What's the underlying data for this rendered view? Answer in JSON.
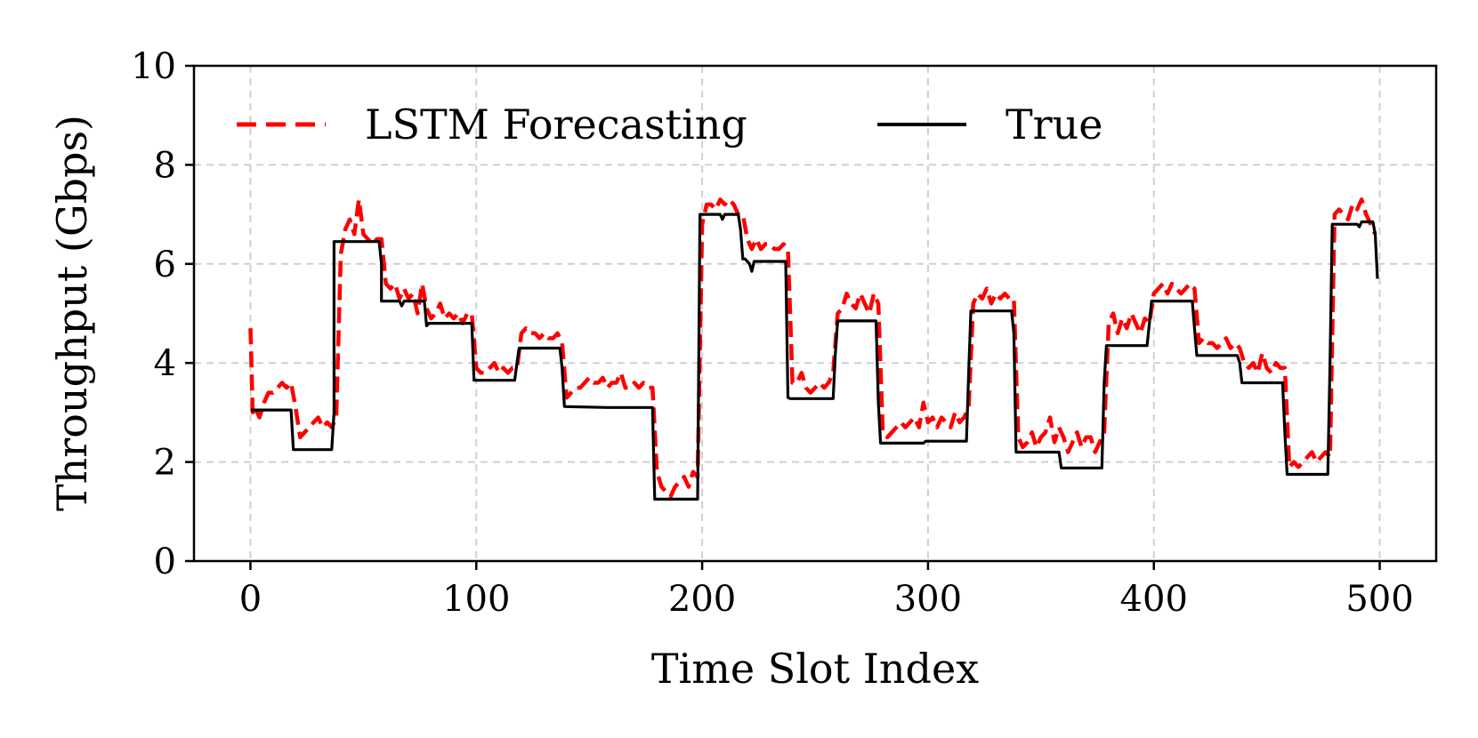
{
  "chart_data": {
    "type": "line",
    "xlabel": "Time Slot Index",
    "ylabel": "Throughput (Gbps)",
    "xlim": [
      -25,
      525
    ],
    "ylim": [
      0,
      10
    ],
    "xticks": [
      0,
      100,
      200,
      300,
      400,
      500
    ],
    "yticks": [
      0,
      2,
      4,
      6,
      8,
      10
    ],
    "xtick_labels": [
      "0",
      "100",
      "200",
      "300",
      "400",
      "500"
    ],
    "ytick_labels": [
      "0",
      "2",
      "4",
      "6",
      "8",
      "10"
    ],
    "grid": true,
    "legend_position": "top",
    "colors": {
      "forecast": "#ff0000",
      "true": "#000000"
    },
    "series": [
      {
        "name": "LSTM Forecasting",
        "style": "dashed",
        "color": "#ff0000",
        "x": [
          0,
          1,
          2,
          4,
          6,
          8,
          10,
          12,
          14,
          16,
          18,
          20,
          22,
          24,
          26,
          28,
          30,
          32,
          34,
          36,
          38,
          40,
          42,
          44,
          46,
          48,
          50,
          52,
          54,
          56,
          58,
          60,
          62,
          64,
          66,
          68,
          70,
          72,
          74,
          76,
          78,
          80,
          82,
          84,
          86,
          88,
          90,
          92,
          94,
          96,
          98,
          100,
          102,
          104,
          106,
          108,
          110,
          112,
          114,
          116,
          118,
          120,
          122,
          124,
          126,
          128,
          130,
          132,
          134,
          136,
          138,
          140,
          142,
          144,
          146,
          148,
          150,
          152,
          154,
          156,
          158,
          160,
          162,
          164,
          166,
          168,
          170,
          172,
          174,
          176,
          178,
          180,
          182,
          184,
          186,
          188,
          190,
          192,
          194,
          196,
          198,
          200,
          202,
          204,
          206,
          208,
          210,
          212,
          214,
          216,
          218,
          220,
          222,
          224,
          226,
          228,
          230,
          232,
          234,
          236,
          238,
          240,
          242,
          244,
          246,
          248,
          250,
          252,
          254,
          256,
          258,
          260,
          262,
          264,
          266,
          268,
          270,
          272,
          274,
          276,
          278,
          280,
          282,
          284,
          286,
          288,
          290,
          292,
          294,
          296,
          298,
          300,
          302,
          304,
          306,
          308,
          310,
          312,
          314,
          316,
          318,
          320,
          322,
          324,
          326,
          328,
          330,
          332,
          334,
          336,
          338,
          340,
          342,
          344,
          346,
          348,
          350,
          352,
          354,
          356,
          358,
          360,
          362,
          364,
          366,
          368,
          370,
          372,
          374,
          376,
          378,
          380,
          382,
          384,
          386,
          388,
          390,
          392,
          394,
          396,
          398,
          400,
          402,
          404,
          406,
          408,
          410,
          412,
          414,
          416,
          418,
          420,
          422,
          424,
          426,
          428,
          430,
          432,
          434,
          436,
          438,
          440,
          442,
          444,
          446,
          448,
          450,
          452,
          454,
          456,
          458,
          460,
          462,
          464,
          466,
          468,
          470,
          472,
          474,
          476,
          478,
          480,
          482,
          484,
          486,
          488,
          490,
          492,
          494,
          496,
          498
        ],
        "y": [
          4.7,
          3.0,
          3.1,
          2.9,
          3.2,
          3.4,
          3.4,
          3.5,
          3.6,
          3.5,
          3.6,
          3.1,
          2.5,
          2.6,
          2.7,
          2.8,
          2.9,
          2.7,
          2.8,
          2.7,
          2.9,
          6.2,
          6.7,
          6.9,
          6.6,
          7.3,
          6.6,
          6.5,
          6.4,
          6.5,
          6.5,
          5.6,
          5.5,
          5.6,
          5.3,
          5.5,
          5.3,
          5.4,
          5.0,
          5.6,
          5.1,
          4.9,
          5.0,
          5.2,
          4.9,
          5.0,
          4.9,
          5.0,
          4.8,
          5.0,
          5.0,
          3.9,
          3.8,
          3.8,
          3.9,
          4.0,
          3.8,
          3.9,
          3.8,
          3.9,
          3.9,
          4.6,
          4.7,
          4.6,
          4.6,
          4.5,
          4.6,
          4.5,
          4.5,
          4.6,
          4.4,
          3.3,
          3.4,
          3.5,
          3.5,
          3.6,
          3.7,
          3.6,
          3.6,
          3.7,
          3.5,
          3.6,
          3.6,
          3.8,
          3.5,
          3.5,
          3.6,
          3.5,
          3.6,
          3.5,
          3.5,
          1.8,
          1.5,
          1.4,
          1.3,
          1.5,
          1.6,
          1.7,
          1.5,
          1.8,
          1.7,
          6.8,
          7.2,
          7.2,
          7.1,
          7.3,
          7.2,
          7.3,
          7.2,
          7.0,
          7.0,
          6.5,
          6.3,
          6.5,
          6.3,
          6.4,
          6.4,
          6.3,
          6.3,
          6.4,
          6.3,
          3.6,
          3.6,
          3.8,
          3.5,
          3.4,
          3.5,
          3.6,
          3.5,
          3.6,
          3.8,
          5.0,
          5.1,
          5.4,
          5.2,
          5.1,
          5.4,
          5.2,
          5.0,
          5.4,
          5.2,
          2.6,
          2.5,
          2.6,
          2.7,
          2.8,
          2.7,
          2.8,
          2.9,
          2.7,
          3.2,
          2.8,
          2.9,
          2.7,
          2.9,
          2.8,
          2.7,
          3.0,
          2.8,
          2.9,
          3.1,
          5.2,
          5.4,
          5.3,
          5.5,
          5.2,
          5.4,
          5.3,
          5.4,
          5.3,
          5.3,
          2.5,
          2.3,
          2.4,
          2.6,
          2.3,
          2.5,
          2.6,
          2.9,
          2.4,
          2.7,
          2.5,
          2.2,
          2.4,
          2.6,
          2.3,
          2.5,
          2.5,
          2.2,
          2.4,
          2.6,
          4.8,
          5.0,
          4.6,
          4.9,
          4.7,
          5.0,
          4.8,
          4.6,
          4.9,
          4.8,
          5.4,
          5.5,
          5.6,
          5.4,
          5.6,
          5.5,
          5.4,
          5.5,
          5.6,
          5.5,
          4.4,
          4.5,
          4.4,
          4.4,
          4.3,
          4.4,
          4.5,
          4.3,
          4.4,
          4.3,
          4.0,
          3.9,
          4.0,
          3.8,
          4.2,
          3.9,
          3.8,
          4.0,
          3.9,
          3.9,
          1.9,
          2.0,
          1.9,
          2.0,
          2.1,
          2.2,
          2.0,
          2.1,
          2.2,
          2.1,
          7.0,
          7.1,
          7.0,
          6.9,
          7.2,
          7.1,
          7.3,
          7.0,
          6.8,
          6.6
        ]
      },
      {
        "name": "True",
        "style": "solid",
        "color": "#000000",
        "x": [
          0,
          18,
          19,
          36,
          37,
          37,
          39,
          57,
          58,
          58,
          66,
          67,
          68,
          77,
          78,
          79,
          98,
          99,
          117,
          118,
          119,
          137,
          138,
          139,
          158,
          159,
          178,
          179,
          198,
          199,
          208,
          209,
          210,
          216,
          217,
          218,
          219,
          221,
          222,
          223,
          237,
          238,
          239,
          258,
          259,
          260,
          277,
          278,
          279,
          298,
          299,
          317,
          318,
          319,
          337,
          338,
          339,
          358,
          359,
          377,
          378,
          379,
          397,
          398,
          399,
          417,
          418,
          419,
          437,
          438,
          439,
          457,
          458,
          459,
          477,
          478,
          479,
          490,
          491,
          492,
          497,
          498,
          499
        ],
        "y": [
          3.05,
          3.05,
          2.25,
          2.25,
          3.0,
          6.45,
          6.45,
          6.45,
          6.0,
          5.25,
          5.25,
          5.15,
          5.25,
          5.25,
          4.75,
          4.8,
          4.8,
          3.65,
          3.65,
          4.0,
          4.3,
          4.3,
          3.9,
          3.12,
          3.1,
          3.1,
          3.1,
          1.25,
          1.25,
          7.0,
          7.0,
          6.9,
          7.0,
          7.0,
          6.7,
          6.1,
          6.1,
          6.0,
          5.85,
          6.05,
          6.05,
          3.3,
          3.28,
          3.28,
          4.2,
          4.85,
          4.85,
          3.2,
          2.38,
          2.38,
          2.42,
          2.42,
          3.8,
          5.05,
          5.05,
          4.6,
          2.2,
          2.2,
          1.88,
          1.88,
          3.6,
          4.35,
          4.35,
          4.8,
          5.25,
          5.25,
          4.7,
          4.15,
          4.15,
          4.0,
          3.6,
          3.6,
          2.6,
          1.75,
          1.75,
          4.0,
          6.8,
          6.8,
          6.75,
          6.85,
          6.85,
          6.6,
          5.7
        ]
      }
    ]
  }
}
